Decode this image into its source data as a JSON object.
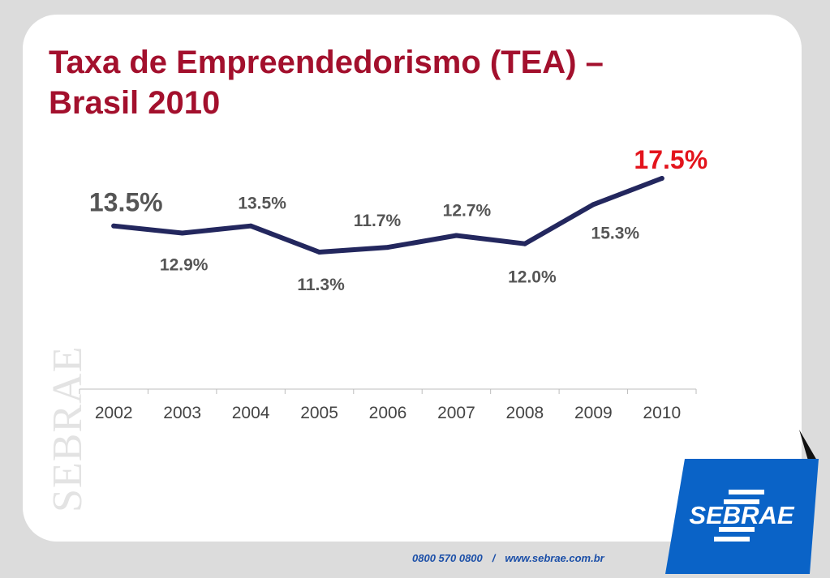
{
  "title": {
    "line1": "Taxa de Empreendedorismo (TEA) –",
    "line2": "Brasil 2010"
  },
  "watermark": "SEBRAE",
  "footer": {
    "phone": "0800 570 0800",
    "separator": "/",
    "url": "www.sebrae.com.br"
  },
  "logo": {
    "text": "SEBRAE",
    "color": "#0a63c7",
    "icon": "sebrae-logo"
  },
  "colors": {
    "title": "#a3102d",
    "line": "#23275e",
    "label": "#555555",
    "highlight": "#e3141c"
  },
  "chart_data": {
    "type": "line",
    "categories": [
      "2002",
      "2003",
      "2004",
      "2005",
      "2006",
      "2007",
      "2008",
      "2009",
      "2010"
    ],
    "values": [
      13.5,
      12.9,
      13.5,
      11.3,
      11.7,
      12.7,
      12.0,
      15.3,
      17.5
    ],
    "data_labels": [
      "13.5%",
      "12.9%",
      "13.5%",
      "11.3%",
      "11.7%",
      "12.7%",
      "12.0%",
      "15.3%",
      "17.5%"
    ],
    "title": "",
    "xlabel": "",
    "ylabel": "",
    "grid": false,
    "legend": "none"
  }
}
